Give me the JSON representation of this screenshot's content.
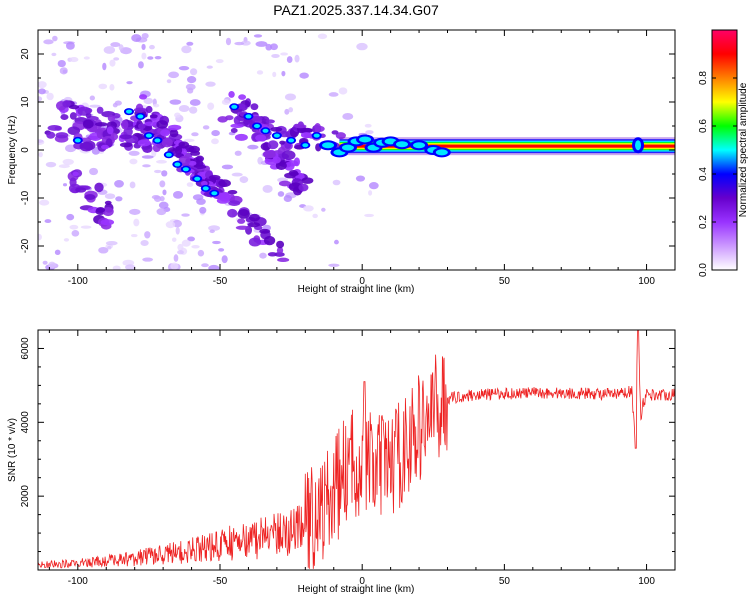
{
  "figure_title": "PAZ1.2025.337.14.34.G07",
  "chart_data": [
    {
      "type": "heatmap",
      "xlabel": "Height of straight line (km)",
      "ylabel": "Frequency (Hz)",
      "xlim": [
        -114,
        110
      ],
      "ylim": [
        -25,
        25
      ],
      "xticks": [
        -100,
        -50,
        0,
        50,
        100
      ],
      "yticks": [
        -20,
        -10,
        0,
        10,
        20
      ],
      "colorbar": {
        "label": "Normalized spectral amplitude",
        "range": [
          0,
          1
        ],
        "ticks": [
          "0.0",
          "0.2",
          "0.4",
          "0.6",
          "0.8"
        ],
        "colors": [
          "#ffffff",
          "#cc99ff",
          "#9933ff",
          "#6600cc",
          "#0000ff",
          "#00ffff",
          "#00ff00",
          "#ffff00",
          "#ff8000",
          "#ff0000",
          "#ff0066"
        ]
      },
      "dominant_ridge": [
        {
          "x": -78,
          "y": 8
        },
        {
          "x": -70,
          "y": 2
        },
        {
          "x": -60,
          "y": -3
        },
        {
          "x": -52,
          "y": -7
        },
        {
          "x": -45,
          "y": 9
        },
        {
          "x": -30,
          "y": 3
        },
        {
          "x": -15,
          "y": 2
        },
        {
          "x": -8,
          "y": 0
        },
        {
          "x": 0,
          "y": 1
        },
        {
          "x": 10,
          "y": 1.5
        },
        {
          "x": 25,
          "y": 0.8
        },
        {
          "x": 50,
          "y": 0.8
        },
        {
          "x": 75,
          "y": 0.8
        },
        {
          "x": 97,
          "y": 0.8
        },
        {
          "x": 110,
          "y": 0.8
        }
      ]
    },
    {
      "type": "line",
      "xlabel": "Height of straight line (km)",
      "ylabel": "SNR (10 * v/v)",
      "xlim": [
        -114,
        110
      ],
      "ylim": [
        0,
        6500
      ],
      "xticks": [
        -100,
        -50,
        0,
        50,
        100
      ],
      "yticks": [
        2000,
        4000,
        6000
      ],
      "color": "#ee2222",
      "envelope": [
        {
          "x": -114,
          "y": 150
        },
        {
          "x": -100,
          "y": 200
        },
        {
          "x": -80,
          "y": 350
        },
        {
          "x": -60,
          "y": 600
        },
        {
          "x": -40,
          "y": 900
        },
        {
          "x": -20,
          "y": 1200
        },
        {
          "x": -12,
          "y": 1800
        },
        {
          "x": -5,
          "y": 2800
        },
        {
          "x": 0,
          "y": 3000
        },
        {
          "x": 5,
          "y": 2700
        },
        {
          "x": 10,
          "y": 2900
        },
        {
          "x": 15,
          "y": 3300
        },
        {
          "x": 20,
          "y": 3800
        },
        {
          "x": 25,
          "y": 4300
        },
        {
          "x": 30,
          "y": 4650
        },
        {
          "x": 40,
          "y": 4750
        },
        {
          "x": 60,
          "y": 4800
        },
        {
          "x": 80,
          "y": 4780
        },
        {
          "x": 90,
          "y": 4750
        },
        {
          "x": 95,
          "y": 4850
        },
        {
          "x": 96,
          "y": 3400
        },
        {
          "x": 97,
          "y": 6500
        },
        {
          "x": 98,
          "y": 4300
        },
        {
          "x": 100,
          "y": 4750
        },
        {
          "x": 110,
          "y": 4750
        }
      ]
    }
  ]
}
